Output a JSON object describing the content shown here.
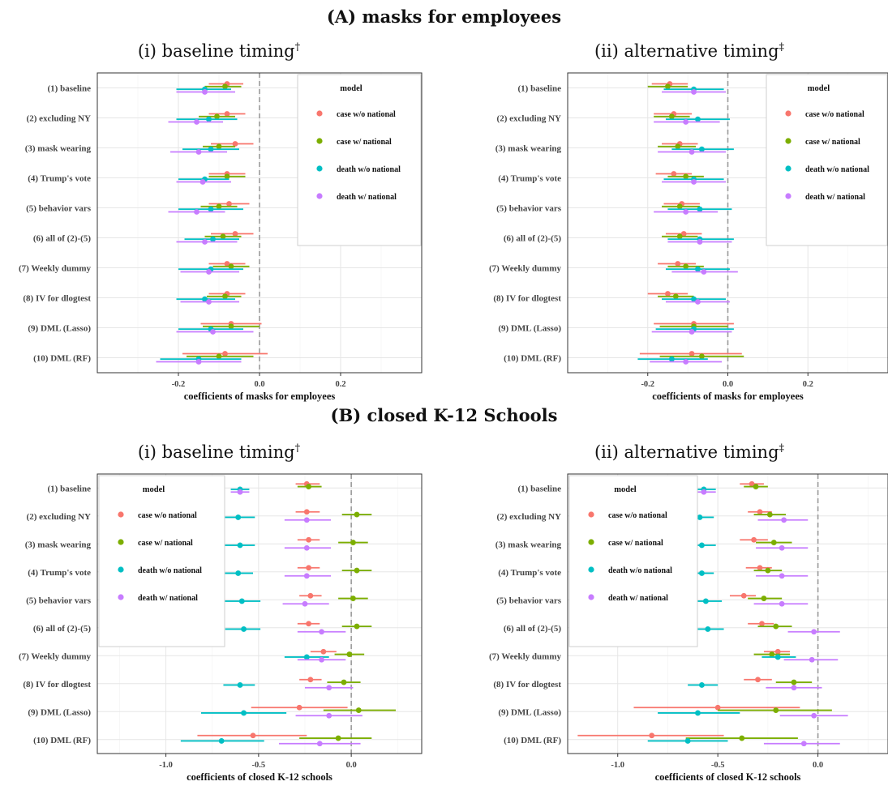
{
  "section_a_title": "(A) masks for employees",
  "section_b_title": "(B) closed K-12 Schools",
  "legend": {
    "title": "model",
    "entries": [
      {
        "name": "case w/o national",
        "color": "#F8766D"
      },
      {
        "name": "case w/ national",
        "color": "#7CAE00"
      },
      {
        "name": "death w/o national",
        "color": "#00BFC4"
      },
      {
        "name": "death w/ national",
        "color": "#C77CFF"
      }
    ]
  },
  "chart_data": [
    {
      "type": "scatter",
      "title": "(i) baseline timing",
      "title_mark": "†",
      "xlabel": "coefficients of masks for employees",
      "xlim": [
        -0.4,
        0.4
      ],
      "xticks": [
        -0.2,
        0.0,
        0.2
      ],
      "xtick_labels": [
        "-0.2",
        "0.0",
        "0.2"
      ],
      "legend_position": "top-right",
      "categories": [
        "(1) baseline",
        "(2) excluding NY",
        "(3) mask wearing",
        "(4) Trump's vote",
        "(5) behavior vars",
        "(6) all of (2)-(5)",
        "(7) Weekly dummy",
        "(8) IV for dlogtest",
        "(9) DML (Lasso)",
        "(10) DML (RF)"
      ],
      "series": [
        {
          "name": "case w/o national",
          "estimates": [
            -0.08,
            -0.08,
            -0.06,
            -0.08,
            -0.075,
            -0.06,
            -0.08,
            -0.08,
            -0.07,
            -0.085
          ],
          "lower": [
            -0.125,
            -0.125,
            -0.12,
            -0.125,
            -0.125,
            -0.12,
            -0.125,
            -0.125,
            -0.145,
            -0.19
          ],
          "upper": [
            -0.04,
            -0.035,
            -0.015,
            -0.035,
            -0.025,
            -0.015,
            -0.035,
            -0.035,
            0.005,
            0.02
          ]
        },
        {
          "name": "case w/ national",
          "estimates": [
            -0.085,
            -0.105,
            -0.1,
            -0.08,
            -0.1,
            -0.09,
            -0.07,
            -0.085,
            -0.07,
            -0.1
          ],
          "lower": [
            -0.135,
            -0.15,
            -0.14,
            -0.125,
            -0.145,
            -0.135,
            -0.115,
            -0.13,
            -0.14,
            -0.18
          ],
          "upper": [
            -0.045,
            -0.06,
            -0.06,
            -0.035,
            -0.055,
            -0.045,
            -0.025,
            -0.045,
            0.0,
            -0.015
          ]
        },
        {
          "name": "death w/o national",
          "estimates": [
            -0.135,
            -0.125,
            -0.12,
            -0.135,
            -0.12,
            -0.115,
            -0.12,
            -0.135,
            -0.12,
            -0.15
          ],
          "lower": [
            -0.205,
            -0.205,
            -0.19,
            -0.2,
            -0.2,
            -0.185,
            -0.2,
            -0.205,
            -0.2,
            -0.245
          ],
          "upper": [
            -0.07,
            -0.055,
            -0.05,
            -0.075,
            -0.04,
            -0.05,
            -0.04,
            -0.06,
            -0.04,
            -0.045
          ]
        },
        {
          "name": "death w/ national",
          "estimates": [
            -0.135,
            -0.155,
            -0.15,
            -0.14,
            -0.155,
            -0.135,
            -0.125,
            -0.125,
            -0.115,
            -0.15
          ],
          "lower": [
            -0.205,
            -0.225,
            -0.22,
            -0.205,
            -0.225,
            -0.205,
            -0.195,
            -0.195,
            -0.205,
            -0.255
          ],
          "upper": [
            -0.06,
            -0.09,
            -0.08,
            -0.07,
            -0.085,
            -0.055,
            -0.05,
            -0.05,
            -0.015,
            -0.045
          ]
        }
      ]
    },
    {
      "type": "scatter",
      "title": "(ii) alternative timing",
      "title_mark": "‡",
      "xlabel": "coefficients of masks for employees",
      "xlim": [
        -0.4,
        0.4
      ],
      "xticks": [
        -0.2,
        0.0,
        0.2
      ],
      "xtick_labels": [
        "-0.2",
        "0.0",
        "0.2"
      ],
      "legend_position": "top-right",
      "categories": [
        "(1) baseline",
        "(2) excluding NY",
        "(3) mask wearing",
        "(4) Trump's vote",
        "(5) behavior vars",
        "(6) all of (2)-(5)",
        "(7) Weekly dummy",
        "(8) IV for dlogtest",
        "(9) DML (Lasso)",
        "(10) DML (RF)"
      ],
      "series": [
        {
          "name": "case w/o national",
          "estimates": [
            -0.145,
            -0.135,
            -0.12,
            -0.135,
            -0.115,
            -0.11,
            -0.125,
            -0.15,
            -0.085,
            -0.09
          ],
          "lower": [
            -0.19,
            -0.185,
            -0.165,
            -0.18,
            -0.16,
            -0.155,
            -0.175,
            -0.2,
            -0.185,
            -0.22
          ],
          "upper": [
            -0.1,
            -0.09,
            -0.075,
            -0.09,
            -0.07,
            -0.065,
            -0.08,
            -0.1,
            0.015,
            0.035
          ]
        },
        {
          "name": "case w/ national",
          "estimates": [
            -0.15,
            -0.14,
            -0.125,
            -0.105,
            -0.12,
            -0.12,
            -0.105,
            -0.13,
            -0.085,
            -0.065
          ],
          "lower": [
            -0.2,
            -0.185,
            -0.175,
            -0.15,
            -0.165,
            -0.165,
            -0.15,
            -0.175,
            -0.17,
            -0.17
          ],
          "upper": [
            -0.1,
            -0.095,
            -0.08,
            -0.06,
            -0.07,
            -0.075,
            -0.06,
            -0.085,
            0.0,
            0.04
          ]
        },
        {
          "name": "death w/o national",
          "estimates": [
            -0.085,
            -0.075,
            -0.065,
            -0.085,
            -0.07,
            -0.07,
            -0.075,
            -0.085,
            -0.085,
            -0.14
          ],
          "lower": [
            -0.16,
            -0.155,
            -0.14,
            -0.16,
            -0.15,
            -0.15,
            -0.155,
            -0.165,
            -0.18,
            -0.225
          ],
          "upper": [
            -0.01,
            0.005,
            0.015,
            -0.01,
            0.01,
            0.015,
            0.005,
            -0.005,
            0.015,
            -0.05
          ]
        },
        {
          "name": "death w/ national",
          "estimates": [
            -0.085,
            -0.105,
            -0.09,
            -0.085,
            -0.105,
            -0.07,
            -0.06,
            -0.075,
            -0.09,
            -0.105
          ],
          "lower": [
            -0.165,
            -0.185,
            -0.175,
            -0.165,
            -0.185,
            -0.15,
            -0.14,
            -0.155,
            -0.19,
            -0.195
          ],
          "upper": [
            -0.005,
            -0.02,
            -0.005,
            -0.005,
            -0.025,
            0.01,
            0.025,
            0.005,
            0.01,
            -0.015
          ]
        }
      ]
    },
    {
      "type": "scatter",
      "title": "(i) baseline timing",
      "title_mark": "†",
      "xlabel": "coefficients of closed K-12 schools",
      "xlim": [
        -1.37,
        0.38
      ],
      "xticks": [
        -1.0,
        -0.5,
        0.0
      ],
      "xtick_labels": [
        "-1.0",
        "-0.5",
        "0.0"
      ],
      "legend_position": "top-left",
      "categories": [
        "(1) baseline",
        "(2) excluding NY",
        "(3) mask wearing",
        "(4) Trump's vote",
        "(5) behavior vars",
        "(6) all of (2)-(5)",
        "(7) Weekly dummy",
        "(8) IV for dlogtest",
        "(9) DML (Lasso)",
        "(10) DML (RF)"
      ],
      "series": [
        {
          "name": "case w/o national",
          "estimates": [
            -0.24,
            -0.24,
            -0.23,
            -0.23,
            -0.22,
            -0.23,
            -0.15,
            -0.22,
            -0.28,
            -0.53
          ],
          "lower": [
            -0.3,
            -0.3,
            -0.29,
            -0.29,
            -0.28,
            -0.29,
            -0.22,
            -0.28,
            -0.54,
            -0.83
          ],
          "upper": [
            -0.17,
            -0.17,
            -0.17,
            -0.17,
            -0.16,
            -0.17,
            -0.08,
            -0.16,
            -0.02,
            -0.24
          ]
        },
        {
          "name": "case w/ national",
          "estimates": [
            -0.23,
            0.03,
            0.01,
            0.03,
            0.01,
            0.03,
            -0.01,
            -0.04,
            0.04,
            -0.07
          ],
          "lower": [
            -0.29,
            -0.05,
            -0.07,
            -0.05,
            -0.07,
            -0.05,
            -0.09,
            -0.13,
            -0.15,
            -0.28
          ],
          "upper": [
            -0.16,
            0.11,
            0.09,
            0.11,
            0.09,
            0.11,
            0.07,
            0.05,
            0.24,
            0.11
          ]
        },
        {
          "name": "death w/o national",
          "estimates": [
            -0.6,
            -0.61,
            -0.6,
            -0.61,
            -0.59,
            -0.58,
            -0.24,
            -0.6,
            -0.58,
            -0.7
          ],
          "lower": [
            -0.65,
            -0.69,
            -0.69,
            -0.69,
            -0.69,
            -0.68,
            -0.36,
            -0.69,
            -0.81,
            -0.92
          ],
          "upper": [
            -0.55,
            -0.52,
            -0.52,
            -0.53,
            -0.49,
            -0.49,
            -0.12,
            -0.52,
            -0.35,
            -0.47
          ]
        },
        {
          "name": "death w/ national",
          "estimates": [
            -0.6,
            -0.24,
            -0.24,
            -0.24,
            -0.25,
            -0.16,
            -0.16,
            -0.12,
            -0.12,
            -0.17
          ],
          "lower": [
            -0.65,
            -0.36,
            -0.36,
            -0.36,
            -0.37,
            -0.29,
            -0.29,
            -0.25,
            -0.3,
            -0.39
          ],
          "upper": [
            -0.55,
            -0.11,
            -0.11,
            -0.11,
            -0.12,
            -0.03,
            -0.03,
            0.01,
            0.06,
            0.05
          ]
        }
      ]
    },
    {
      "type": "scatter",
      "title": "(ii) alternative timing",
      "title_mark": "‡",
      "xlabel": "coefficients of closed K-12 schools",
      "xlim": [
        -1.25,
        0.35
      ],
      "xticks": [
        -1.0,
        -0.5,
        0.0
      ],
      "xtick_labels": [
        "-1.0",
        "-0.5",
        "0.0"
      ],
      "legend_position": "top-left",
      "categories": [
        "(1) baseline",
        "(2) excluding NY",
        "(3) mask wearing",
        "(4) Trump's vote",
        "(5) behavior vars",
        "(6) all of (2)-(5)",
        "(7) Weekly dummy",
        "(8) IV for dlogtest",
        "(9) DML (Lasso)",
        "(10) DML (RF)"
      ],
      "series": [
        {
          "name": "case w/o national",
          "estimates": [
            -0.33,
            -0.29,
            -0.32,
            -0.29,
            -0.37,
            -0.28,
            -0.2,
            -0.3,
            -0.5,
            -0.83
          ],
          "lower": [
            -0.39,
            -0.35,
            -0.39,
            -0.36,
            -0.44,
            -0.35,
            -0.27,
            -0.37,
            -0.92,
            -1.2
          ],
          "upper": [
            -0.27,
            -0.23,
            -0.25,
            -0.23,
            -0.31,
            -0.22,
            -0.14,
            -0.23,
            -0.09,
            -0.47
          ]
        },
        {
          "name": "case w/ national",
          "estimates": [
            -0.31,
            -0.24,
            -0.22,
            -0.25,
            -0.27,
            -0.21,
            -0.23,
            -0.12,
            -0.21,
            -0.38
          ],
          "lower": [
            -0.37,
            -0.32,
            -0.31,
            -0.32,
            -0.35,
            -0.3,
            -0.32,
            -0.21,
            -0.5,
            -0.66
          ],
          "upper": [
            -0.25,
            -0.16,
            -0.13,
            -0.18,
            -0.18,
            -0.13,
            -0.14,
            -0.03,
            0.07,
            -0.1
          ]
        },
        {
          "name": "death w/o national",
          "estimates": [
            -0.57,
            -0.59,
            -0.58,
            -0.58,
            -0.56,
            -0.55,
            -0.2,
            -0.58,
            -0.6,
            -0.65
          ],
          "lower": [
            -0.63,
            -0.65,
            -0.64,
            -0.65,
            -0.63,
            -0.64,
            -0.28,
            -0.65,
            -0.8,
            -0.85
          ],
          "upper": [
            -0.51,
            -0.52,
            -0.51,
            -0.52,
            -0.48,
            -0.47,
            -0.11,
            -0.5,
            -0.39,
            -0.45
          ]
        },
        {
          "name": "death w/ national",
          "estimates": [
            -0.57,
            -0.17,
            -0.18,
            -0.18,
            -0.18,
            -0.02,
            -0.03,
            -0.12,
            -0.02,
            -0.07
          ],
          "lower": [
            -0.63,
            -0.3,
            -0.31,
            -0.31,
            -0.32,
            -0.15,
            -0.17,
            -0.26,
            -0.19,
            -0.27
          ],
          "upper": [
            -0.51,
            -0.05,
            -0.05,
            -0.05,
            -0.05,
            0.11,
            0.1,
            0.02,
            0.15,
            0.11
          ]
        }
      ]
    }
  ]
}
